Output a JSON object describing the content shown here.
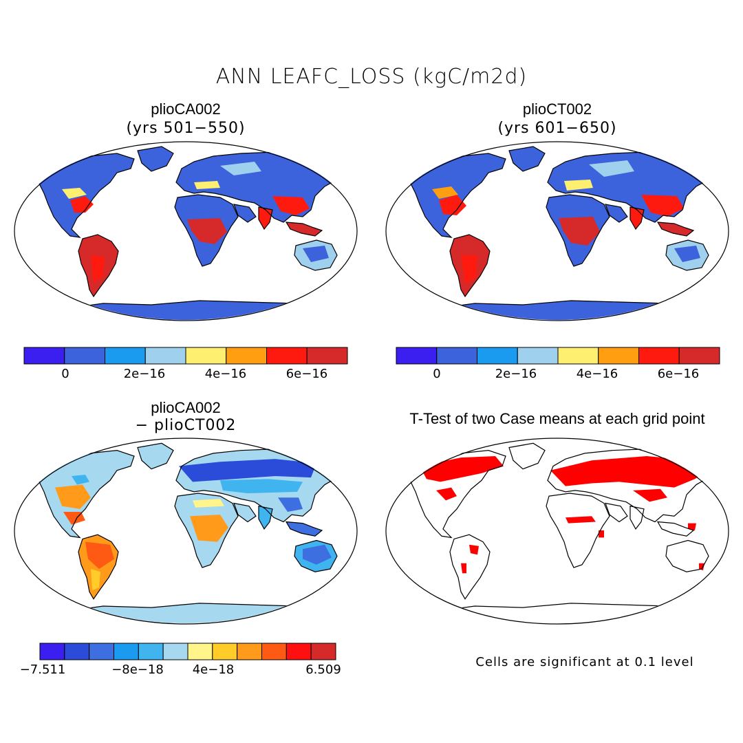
{
  "figure": {
    "title": "ANN LEAFC_LOSS (kgC/m2d)",
    "ttest_title": "T-Test of two Case means at each grid point",
    "significance_note": "Cells are significant at 0.1 level"
  },
  "panels": {
    "case_a": {
      "name": "plioCA002",
      "subtitle": "(yrs 501−550)"
    },
    "case_b": {
      "name": "plioCT002",
      "subtitle": "(yrs 601−650)"
    },
    "diff": {
      "name": "plioCA002",
      "subtitle": "− plioCT002"
    }
  },
  "colors": {
    "abs_bins": [
      "#3a1ff0",
      "#3d63dc",
      "#1a9bf0",
      "#9fd1ee",
      "#ffef70",
      "#ff9e10",
      "#ff1a10",
      "#d62a2a"
    ],
    "diff_bins": [
      "#3a1ff0",
      "#2a4cd8",
      "#3d6fe0",
      "#1a9bf0",
      "#3fb4ef",
      "#a6d8f0",
      "#fff58a",
      "#ffcc2a",
      "#ff9a1a",
      "#ff5a14",
      "#ff1010",
      "#d62a2a"
    ],
    "significant": "#ff0000"
  },
  "chart_data": [
    {
      "type": "heatmap",
      "title": "plioCA002 (yrs 501−550)",
      "colorbar": {
        "bins": 8,
        "tick_labels": [
          "0",
          "2e−16",
          "4e−16",
          "6e−16"
        ]
      }
    },
    {
      "type": "heatmap",
      "title": "plioCT002 (yrs 601−650)",
      "colorbar": {
        "bins": 8,
        "tick_labels": [
          "0",
          "2e−16",
          "4e−16",
          "6e−16"
        ]
      }
    },
    {
      "type": "heatmap",
      "title": "plioCA002 − plioCT002",
      "colorbar": {
        "bins": 12,
        "tick_labels": [
          "−7.511",
          "−8e−18",
          "4e−18",
          "6.509"
        ]
      }
    },
    {
      "type": "heatmap",
      "title": "T-Test of two Case means at each grid point",
      "legend": "Cells are significant at 0.1 level"
    }
  ]
}
